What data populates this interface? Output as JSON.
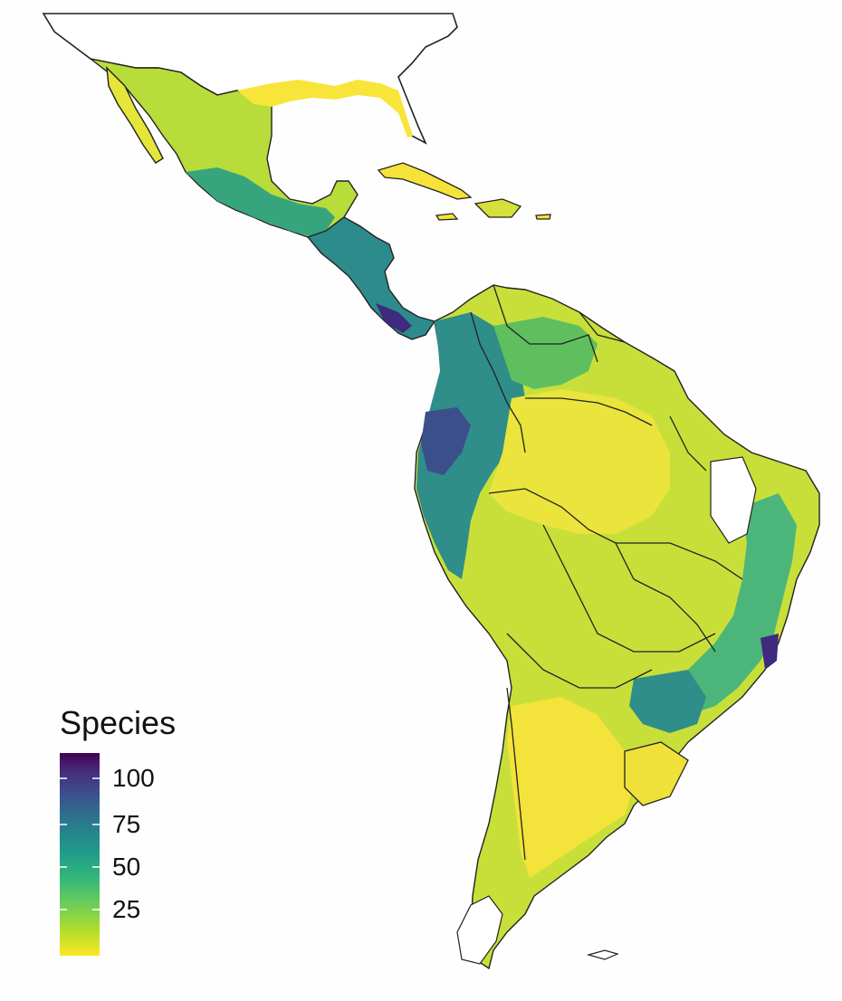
{
  "legend": {
    "title": "Species",
    "ticks": [
      {
        "value": 100,
        "label": "100"
      },
      {
        "value": 75,
        "label": "75"
      },
      {
        "value": 50,
        "label": "50"
      },
      {
        "value": 25,
        "label": "25"
      }
    ],
    "range": [
      0,
      110
    ],
    "palette": "viridis",
    "colors": [
      "#fde725",
      "#b5de2b",
      "#6ece58",
      "#35b779",
      "#1f9e89",
      "#26828e",
      "#31688e",
      "#3e4989",
      "#482878",
      "#440154"
    ]
  },
  "map": {
    "background": "#fefefe",
    "border_color": "#222222",
    "region": "Latin America"
  }
}
